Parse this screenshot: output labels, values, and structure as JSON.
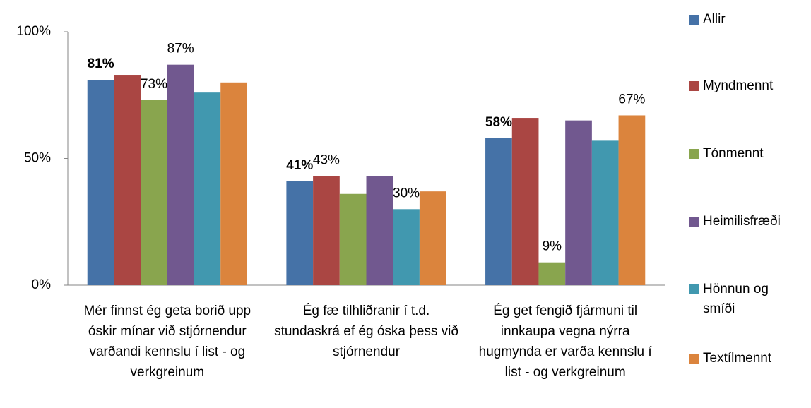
{
  "chart_data": {
    "type": "bar",
    "categories": [
      "Mér finnst ég geta borið upp óskir mínar við stjórnendur varðandi kennslu í list - og verkgreinum",
      "Ég fæ tilhliðranir í t.d. stundaskrá ef ég óska þess við stjórnendur",
      "Ég get fengið fjármuni til innkaupa vegna nýrra hugmynda er varða kennslu í list - og verkgreinum"
    ],
    "series": [
      {
        "name": "Allir",
        "color": "#4572a7",
        "values": [
          81,
          41,
          58
        ],
        "value_labels": [
          "81%",
          "41%",
          "58%"
        ]
      },
      {
        "name": "Myndmennt",
        "color": "#aa4643",
        "values": [
          83,
          43,
          66
        ],
        "value_labels": [
          null,
          "43%",
          null
        ]
      },
      {
        "name": "Tónmennt",
        "color": "#89a54e",
        "values": [
          73,
          36,
          9
        ],
        "value_labels": [
          "73%",
          null,
          "9%"
        ]
      },
      {
        "name": "Heimilisfræði",
        "color": "#71588f",
        "values": [
          87,
          43,
          65
        ],
        "value_labels": [
          "87%",
          null,
          null
        ]
      },
      {
        "name": "Hönnun og smíði",
        "color": "#4198af",
        "values": [
          76,
          30,
          57
        ],
        "value_labels": [
          null,
          "30%",
          null
        ]
      },
      {
        "name": "Textílmennt",
        "color": "#db843d",
        "values": [
          80,
          37,
          67
        ],
        "value_labels": [
          null,
          null,
          "67%"
        ]
      }
    ],
    "ylim": [
      0,
      100
    ],
    "yticks": [
      {
        "value": 0,
        "label": "0%"
      },
      {
        "value": 50,
        "label": "50%"
      },
      {
        "value": 100,
        "label": "100%"
      }
    ],
    "legend": "right"
  }
}
